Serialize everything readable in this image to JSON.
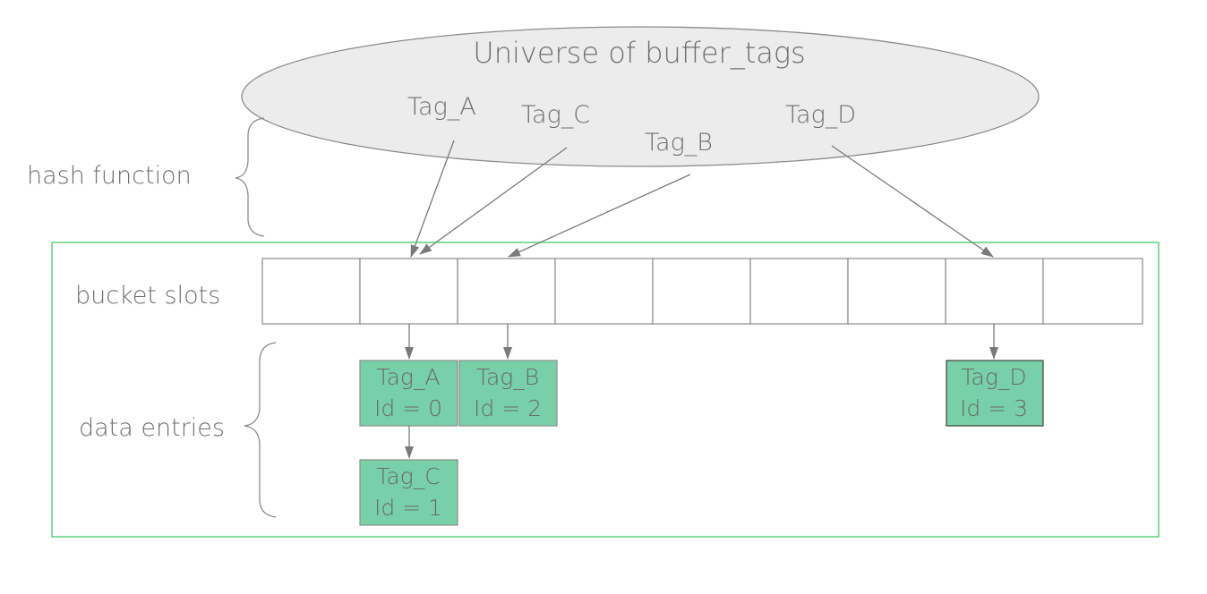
{
  "universe": {
    "title": "Universe of buffer_tags"
  },
  "tags": [
    "Tag_A",
    "Tag_C",
    "Tag_B",
    "Tag_D"
  ],
  "labels": {
    "hash_function": "hash function",
    "bucket_slots": "bucket slots",
    "data_entries": "data entries"
  },
  "bucket_count": 9,
  "entries": [
    {
      "tag": "Tag_A",
      "id": "Id = 0"
    },
    {
      "tag": "Tag_B",
      "id": "Id = 2"
    },
    {
      "tag": "Tag_D",
      "id": "Id = 3"
    },
    {
      "tag": "Tag_C",
      "id": "Id = 1"
    }
  ],
  "colors": {
    "entry_fill": "#77d0a8",
    "frame": "#5fd07e",
    "ellipse_fill": "#ececec"
  }
}
